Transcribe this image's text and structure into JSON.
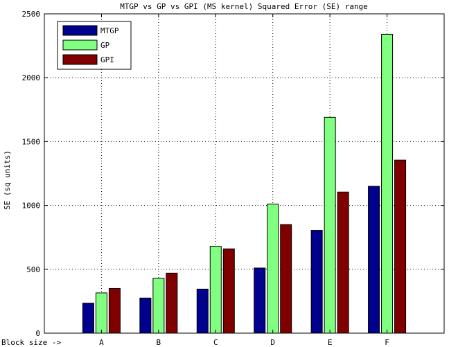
{
  "chart_data": {
    "type": "bar",
    "title": "MTGP vs GP vs GPI (MS kernel) Squared Error (SE) range",
    "xlabel": "Block size ->",
    "ylabel": "SE (sq units)",
    "categories": [
      "A",
      "B",
      "C",
      "D",
      "E",
      "F"
    ],
    "ylim": [
      0,
      2500
    ],
    "yticks": [
      0,
      500,
      1000,
      1500,
      2000,
      2500
    ],
    "grid": true,
    "legend_position": "top-left",
    "series": [
      {
        "name": "MTGP",
        "color": "#00008f",
        "values": [
          235,
          275,
          345,
          510,
          805,
          1150
        ]
      },
      {
        "name": "GP",
        "color": "#80ff80",
        "values": [
          315,
          430,
          680,
          1010,
          1690,
          2340
        ]
      },
      {
        "name": "GPI",
        "color": "#800000",
        "values": [
          350,
          470,
          660,
          850,
          1105,
          1355
        ]
      }
    ]
  }
}
